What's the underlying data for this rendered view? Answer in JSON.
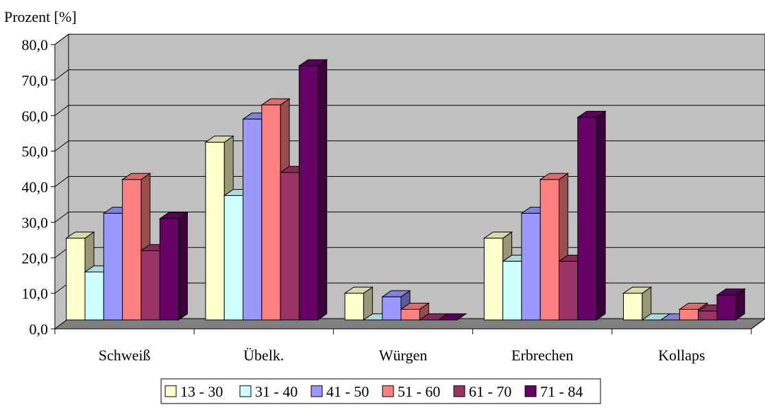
{
  "chart_data": {
    "type": "bar",
    "title": "",
    "ylabel": "Prozent [%]",
    "xlabel": "",
    "ylim": [
      0,
      80
    ],
    "ytick_values": [
      0,
      10,
      20,
      30,
      40,
      50,
      60,
      70,
      80
    ],
    "ytick_labels": [
      "0,0",
      "10,0",
      "20,0",
      "30,0",
      "40,0",
      "50,0",
      "60,0",
      "70,0",
      "80,0"
    ],
    "categories": [
      "Schweiß",
      "Übelk.",
      "Würgen",
      "Erbrechen",
      "Kollaps"
    ],
    "series": [
      {
        "name": "13 - 30",
        "color": "#ffffcc",
        "values": [
          23.0,
          50.0,
          7.5,
          23.0,
          7.5
        ]
      },
      {
        "name": "31 - 40",
        "color": "#ccffff",
        "values": [
          13.5,
          35.0,
          0.0,
          16.5,
          0.0
        ]
      },
      {
        "name": "41 - 50",
        "color": "#9999ff",
        "values": [
          30.0,
          56.5,
          6.5,
          30.0,
          0.0
        ]
      },
      {
        "name": "51 - 60",
        "color": "#ff8080",
        "values": [
          39.5,
          60.5,
          3.0,
          39.5,
          3.0
        ]
      },
      {
        "name": "61 - 70",
        "color": "#993366",
        "values": [
          19.5,
          41.5,
          0.0,
          16.5,
          2.5
        ]
      },
      {
        "name": "71 - 84",
        "color": "#660066",
        "values": [
          28.5,
          71.5,
          0.0,
          57.0,
          7.0
        ]
      }
    ],
    "style": {
      "wall_color": "#c0c0c0",
      "floor_color": "#808080",
      "grid": true,
      "legend_position": "bottom",
      "three_d": true
    }
  }
}
